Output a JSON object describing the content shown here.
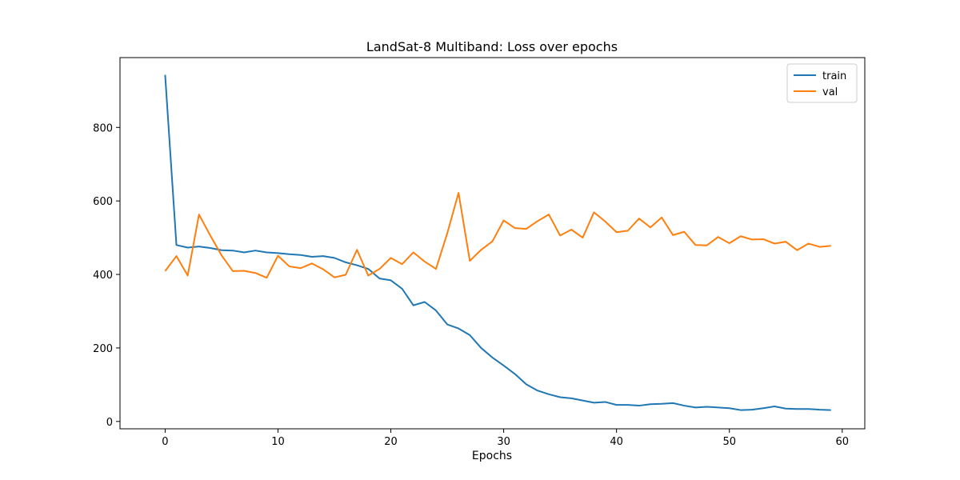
{
  "chart_data": {
    "type": "line",
    "title": "LandSat-8 Multiband: Loss over epochs",
    "xlabel": "Epochs",
    "ylabel": "",
    "xlim": [
      -4,
      62
    ],
    "ylim": [
      -20,
      990
    ],
    "xticks": [
      0,
      10,
      20,
      30,
      40,
      50,
      60
    ],
    "yticks": [
      0,
      200,
      400,
      600,
      800
    ],
    "grid": false,
    "legend_position": "top-right",
    "series": [
      {
        "name": "train",
        "color": "#1f77b4",
        "x": [
          0,
          1,
          2,
          3,
          4,
          5,
          6,
          7,
          8,
          9,
          10,
          11,
          12,
          13,
          14,
          15,
          16,
          17,
          18,
          19,
          20,
          21,
          22,
          23,
          24,
          25,
          26,
          27,
          28,
          29,
          30,
          31,
          32,
          33,
          34,
          35,
          36,
          37,
          38,
          39,
          40,
          41,
          42,
          43,
          44,
          45,
          46,
          47,
          48,
          49,
          50,
          51,
          52,
          53,
          54,
          55,
          56,
          57,
          58,
          59
        ],
        "values": [
          943,
          480,
          473,
          476,
          472,
          466,
          465,
          460,
          465,
          460,
          458,
          455,
          453,
          448,
          450,
          445,
          433,
          425,
          415,
          389,
          384,
          361,
          316,
          325,
          302,
          264,
          253,
          235,
          200,
          174,
          152,
          129,
          101,
          84,
          74,
          66,
          63,
          57,
          51,
          53,
          45,
          45,
          43,
          47,
          48,
          50,
          43,
          38,
          40,
          38,
          36,
          31,
          32,
          36,
          41,
          35,
          34,
          34,
          32,
          31
        ]
      },
      {
        "name": "val",
        "color": "#ff7f0e",
        "x": [
          0,
          1,
          2,
          3,
          4,
          5,
          6,
          7,
          8,
          9,
          10,
          11,
          12,
          13,
          14,
          15,
          16,
          17,
          18,
          19,
          20,
          21,
          22,
          23,
          24,
          25,
          26,
          27,
          28,
          29,
          30,
          31,
          32,
          33,
          34,
          35,
          36,
          37,
          38,
          39,
          40,
          41,
          42,
          43,
          44,
          45,
          46,
          47,
          48,
          49,
          50,
          51,
          52,
          53,
          54,
          55,
          56,
          57,
          58,
          59
        ],
        "values": [
          409,
          450,
          397,
          563,
          506,
          452,
          409,
          410,
          404,
          391,
          451,
          422,
          417,
          430,
          414,
          392,
          399,
          467,
          397,
          415,
          445,
          428,
          460,
          435,
          415,
          512,
          622,
          437,
          467,
          490,
          547,
          526,
          524,
          545,
          563,
          506,
          522,
          500,
          569,
          544,
          515,
          519,
          552,
          528,
          555,
          507,
          516,
          480,
          479,
          502,
          485,
          504,
          495,
          496,
          484,
          489,
          466,
          484,
          475,
          478
        ]
      }
    ]
  }
}
